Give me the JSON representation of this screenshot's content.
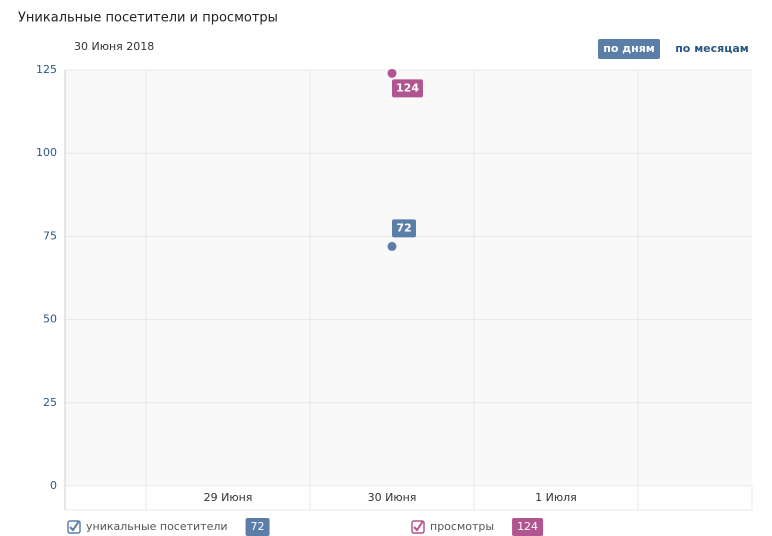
{
  "chart_data": {
    "type": "scatter",
    "title": "Уникальные посетители и просмотры",
    "subtitle": "30 Июня 2018",
    "categories": [
      "29 Июня",
      "30 Июня",
      "1 Июля"
    ],
    "series": [
      {
        "name": "уникальные посетители",
        "color": "#5b7ea8",
        "values": [
          null,
          72,
          null
        ]
      },
      {
        "name": "просмотры",
        "color": "#b0558f",
        "values": [
          null,
          124,
          null
        ]
      }
    ],
    "ylim": [
      0,
      125
    ],
    "yticks": [
      0,
      25,
      50,
      75,
      100,
      125
    ],
    "grid": true
  },
  "controls": {
    "period_buttons": [
      "по дням",
      "по месяцам"
    ]
  }
}
